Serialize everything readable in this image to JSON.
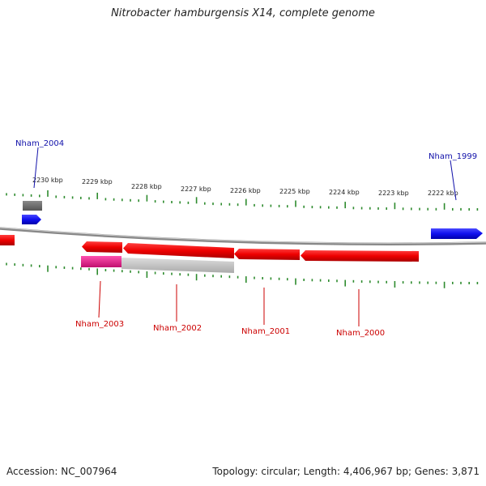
{
  "title": "Nitrobacter hamburgensis X14, complete genome",
  "footer": {
    "accession": "Accession: NC_007964",
    "stats": "Topology: circular; Length: 4,406,967 bp; Genes: 3,871"
  },
  "colors": {
    "forward_strand": "#1a1aee",
    "reverse_strand": "#ee1111",
    "forward_label": "#1111aa",
    "reverse_label": "#cc0000",
    "tick": "#2e8b2e",
    "backbone": "#888888",
    "pink_feature": "#e0208a",
    "grey_feature": "#bbbbbb",
    "dark_grey_feature": "#666666"
  },
  "scale": {
    "labels": [
      "2230 kbp",
      "2229 kbp",
      "2228 kbp",
      "2227 kbp",
      "2226 kbp",
      "2225 kbp",
      "2224 kbp",
      "2223 kbp",
      "2222 kbp"
    ]
  },
  "genes": {
    "forward": [
      {
        "name": "Nham_2004"
      },
      {
        "name": "Nham_1999"
      }
    ],
    "reverse": [
      {
        "name": "Nham_2003"
      },
      {
        "name": "Nham_2002"
      },
      {
        "name": "Nham_2001"
      },
      {
        "name": "Nham_2000"
      }
    ]
  }
}
